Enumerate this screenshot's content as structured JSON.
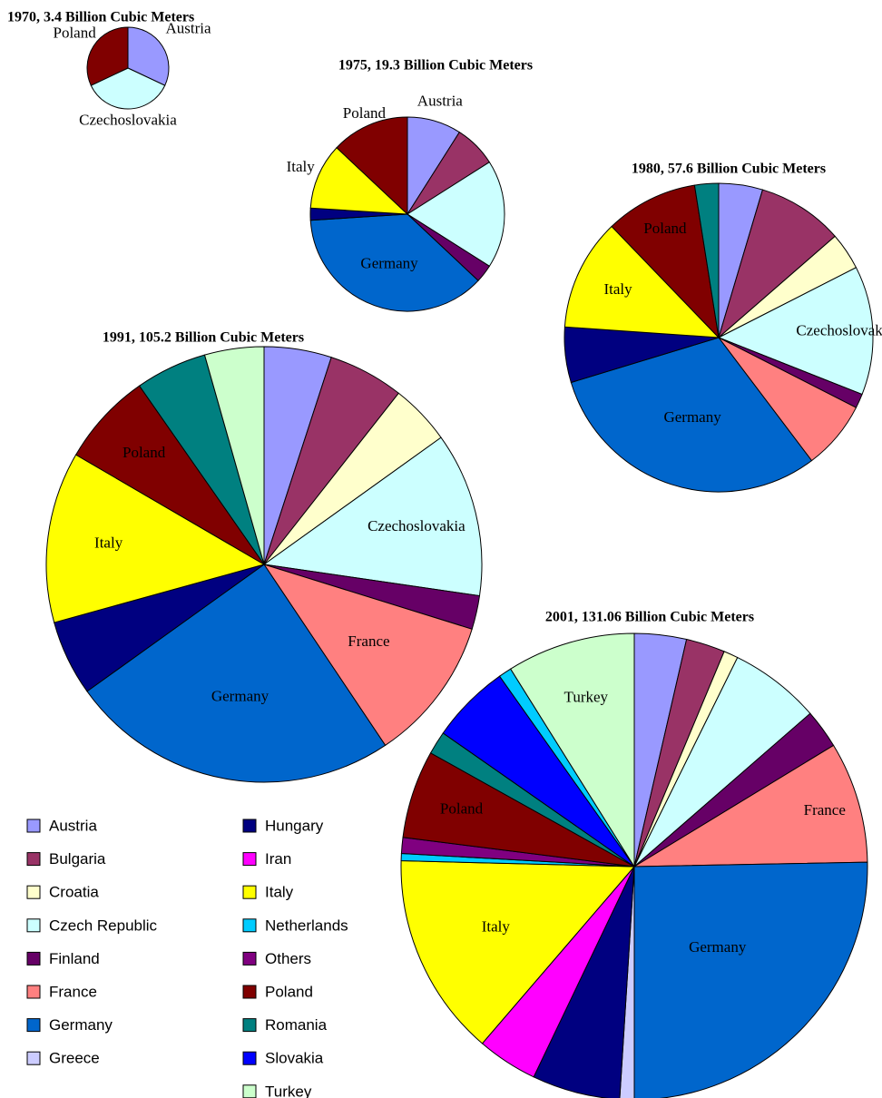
{
  "chart_data": [
    {
      "type": "pie",
      "title": "1970, 3.4 Billion Cubic Meters",
      "categories": [
        "Austria",
        "Czechoslovakia",
        "Poland"
      ],
      "values": [
        32,
        36,
        32
      ],
      "colors": [
        "#9999ff",
        "#ccffff",
        "#800000"
      ]
    },
    {
      "type": "pie",
      "title": "1975, 19.3 Billion Cubic Meters",
      "categories": [
        "Austria",
        null,
        null,
        null,
        "Germany",
        null,
        "Italy",
        "Poland"
      ],
      "values": [
        9,
        7,
        18,
        3,
        37,
        2,
        11,
        13
      ],
      "colors": [
        "#9999ff",
        "#993366",
        "#ccffff",
        "#660066",
        "#0066cc",
        "#000080",
        "#ffff00",
        "#800000"
      ]
    },
    {
      "type": "pie",
      "title": "1980, 57.6 Billion Cubic Meters",
      "categories": [
        null,
        null,
        null,
        "Czechoslovakia",
        null,
        null,
        "Germany",
        null,
        "Italy",
        "Poland",
        null
      ],
      "values": [
        4.6,
        9,
        3.9,
        13.5,
        1.5,
        7.2,
        30.6,
        5.8,
        11.7,
        9.7,
        2.5
      ],
      "colors": [
        "#9999ff",
        "#993366",
        "#ffffcc",
        "#ccffff",
        "#660066",
        "#ff8080",
        "#0066cc",
        "#000080",
        "#ffff00",
        "#800000",
        "#008080"
      ]
    },
    {
      "type": "pie",
      "title": "1991, 105.2 Billion Cubic Meters",
      "categories": [
        null,
        null,
        null,
        "Czechoslovakia",
        null,
        "France",
        "Germany",
        null,
        "Italy",
        "Poland",
        null,
        null
      ],
      "values": [
        5,
        5.6,
        4.5,
        12.2,
        2.5,
        10.8,
        24.5,
        5.6,
        12.7,
        6.9,
        5.3,
        4.4
      ],
      "colors": [
        "#9999ff",
        "#993366",
        "#ffffcc",
        "#ccffff",
        "#660066",
        "#ff8080",
        "#0066cc",
        "#000080",
        "#ffff00",
        "#800000",
        "#008080",
        "#ccffcc"
      ]
    },
    {
      "type": "pie",
      "title": "2001, 131.06 Billion Cubic Meters",
      "categories": [
        null,
        null,
        null,
        null,
        null,
        "France",
        "Germany",
        null,
        null,
        null,
        "Italy",
        null,
        null,
        "Poland",
        null,
        null,
        null,
        "Turkey"
      ],
      "values": [
        3.6,
        2.7,
        1.0,
        6.3,
        2.7,
        8.4,
        25.3,
        1.0,
        6.1,
        4.2,
        14.1,
        0.5,
        1.1,
        6.1,
        1.6,
        5.5,
        0.9,
        8.9
      ],
      "colors": [
        "#9999ff",
        "#993366",
        "#ffffcc",
        "#ccffff",
        "#660066",
        "#ff8080",
        "#0066cc",
        "#ccccff",
        "#000080",
        "#ff00ff",
        "#ffff00",
        "#00ccff",
        "#800080",
        "#800000",
        "#008080",
        "#0000ff",
        "#00ccff",
        "#ccffcc"
      ]
    }
  ],
  "legend": [
    {
      "name": "Austria",
      "color": "#9999ff"
    },
    {
      "name": "Bulgaria",
      "color": "#993366"
    },
    {
      "name": "Croatia",
      "color": "#ffffcc"
    },
    {
      "name": "Czech Republic",
      "color": "#ccffff"
    },
    {
      "name": "Finland",
      "color": "#660066"
    },
    {
      "name": "France",
      "color": "#ff8080"
    },
    {
      "name": "Germany",
      "color": "#0066cc"
    },
    {
      "name": "Greece",
      "color": "#ccccff"
    },
    {
      "name": "Hungary",
      "color": "#000080"
    },
    {
      "name": "Iran",
      "color": "#ff00ff"
    },
    {
      "name": "Italy",
      "color": "#ffff00"
    },
    {
      "name": "Netherlands",
      "color": "#00ccff"
    },
    {
      "name": "Others",
      "color": "#800080"
    },
    {
      "name": "Poland",
      "color": "#800000"
    },
    {
      "name": "Romania",
      "color": "#008080"
    },
    {
      "name": "Slovakia",
      "color": "#0000ff"
    },
    {
      "name": "Turkey",
      "color": "#ccffcc"
    }
  ]
}
